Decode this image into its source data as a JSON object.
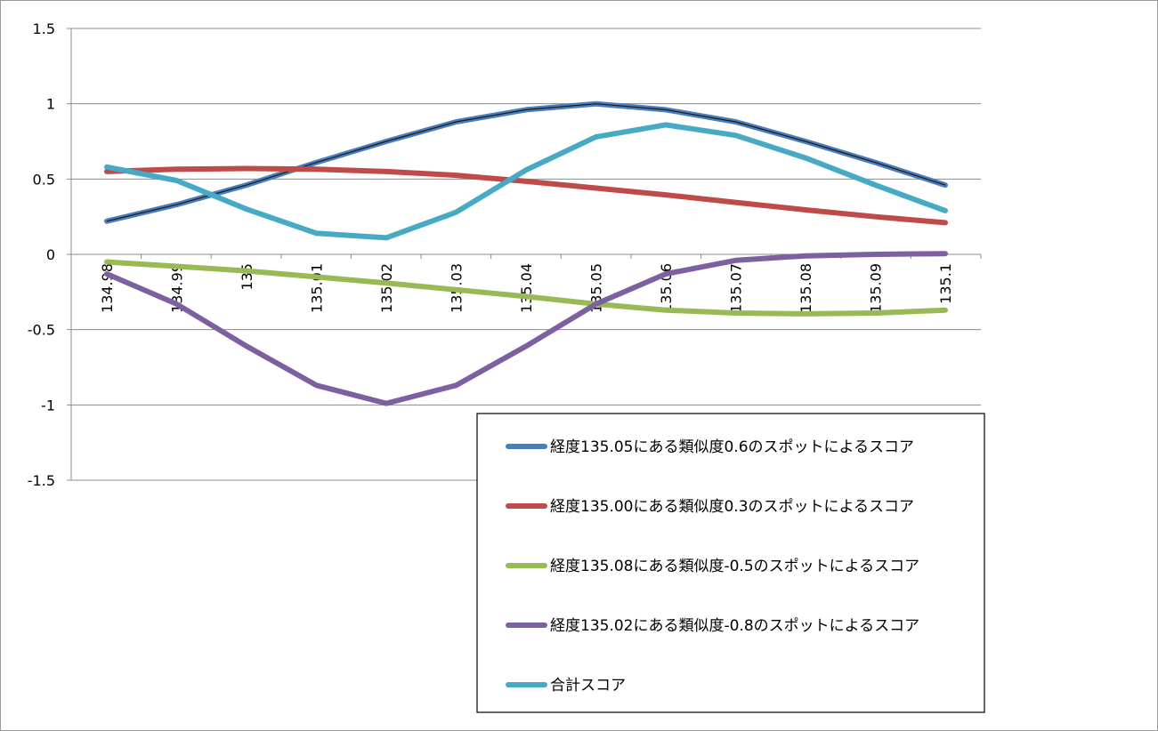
{
  "chart_data": {
    "type": "line",
    "title": "",
    "xlabel": "",
    "ylabel": "",
    "ylim": [
      -1.5,
      1.5
    ],
    "yticks": [
      "1.5",
      "1",
      "0.5",
      "0",
      "-0.5",
      "-1",
      "-1.5"
    ],
    "ytick_values": [
      1.5,
      1,
      0.5,
      0,
      -0.5,
      -1,
      -1.5
    ],
    "categories": [
      "134.98",
      "134.99",
      "135",
      "135.01",
      "135.02",
      "135.03",
      "135.04",
      "135.05",
      "135.06",
      "135.07",
      "135.08",
      "135.09",
      "135.1"
    ],
    "grid": "horizontal",
    "legend_position": "bottom-right",
    "series": [
      {
        "name": "経度135.05にある類似度0.6のスポットによるスコア",
        "color": "#4a7ebb",
        "values": [
          0.22,
          0.33,
          0.46,
          0.61,
          0.75,
          0.88,
          0.96,
          1.0,
          0.96,
          0.88,
          0.75,
          0.61,
          0.46
        ]
      },
      {
        "name": "経度135.00にある類似度0.3のスポットによるスコア",
        "color": "#be4b48",
        "values": [
          0.55,
          0.565,
          0.57,
          0.565,
          0.55,
          0.525,
          0.485,
          0.44,
          0.395,
          0.345,
          0.295,
          0.25,
          0.21
        ]
      },
      {
        "name": "経度135.08にある類似度-0.5のスポットによるスコア",
        "color": "#98b954",
        "values": [
          -0.05,
          -0.08,
          -0.11,
          -0.15,
          -0.19,
          -0.235,
          -0.28,
          -0.33,
          -0.37,
          -0.39,
          -0.395,
          -0.39,
          -0.37
        ]
      },
      {
        "name": "経度135.02にある類似度-0.8のスポットによるスコア",
        "color": "#7d60a0",
        "values": [
          -0.13,
          -0.33,
          -0.61,
          -0.87,
          -0.99,
          -0.87,
          -0.61,
          -0.33,
          -0.13,
          -0.04,
          -0.01,
          0.0,
          0.005
        ]
      },
      {
        "name": "合計スコア",
        "color": "#46aac5",
        "values": [
          0.58,
          0.49,
          0.3,
          0.14,
          0.11,
          0.28,
          0.56,
          0.78,
          0.86,
          0.79,
          0.64,
          0.46,
          0.29
        ]
      }
    ]
  }
}
